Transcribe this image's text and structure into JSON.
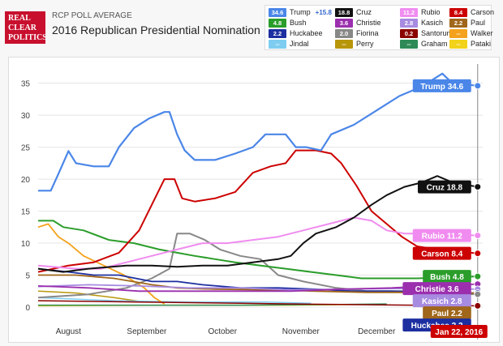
{
  "header": {
    "logo": [
      "REAL",
      "CLEAR",
      "POLITICS"
    ],
    "label": "RCP POLL AVERAGE",
    "title": "2016 Republican Presidential Nomination"
  },
  "legend": [
    {
      "name": "Trump",
      "value": "34.6",
      "color": "#4a86e8",
      "extra": "+15.8"
    },
    {
      "name": "Cruz",
      "value": "18.8",
      "color": "#111111"
    },
    {
      "name": "Rubio",
      "value": "11.2",
      "color": "#f08cf0"
    },
    {
      "name": "Carson",
      "value": "8.4",
      "color": "#cc0000"
    },
    {
      "name": "Bush",
      "value": "4.8",
      "color": "#2a9d2a"
    },
    {
      "name": "Christie",
      "value": "3.6",
      "color": "#9b2fae"
    },
    {
      "name": "Kasich",
      "value": "2.8",
      "color": "#a78be0"
    },
    {
      "name": "Paul",
      "value": "2.2",
      "color": "#a0661a"
    },
    {
      "name": "Huckabee",
      "value": "2.2",
      "color": "#1c2ea0"
    },
    {
      "name": "Fiorina",
      "value": "2.0",
      "color": "#888888"
    },
    {
      "name": "Santorum",
      "value": "0.2",
      "color": "#8b0000"
    },
    {
      "name": "Walker",
      "value": "--",
      "color": "#f4a21d"
    },
    {
      "name": "Jindal",
      "value": "--",
      "color": "#7ecdf0"
    },
    {
      "name": "Perry",
      "value": "--",
      "color": "#b8960a"
    },
    {
      "name": "Graham",
      "value": "--",
      "color": "#2e8b57"
    },
    {
      "name": "Pataki",
      "value": "--",
      "color": "#f2d21a"
    }
  ],
  "chart_data": {
    "type": "line",
    "ylim": [
      0,
      38
    ],
    "yticks": [
      0,
      5,
      10,
      15,
      20,
      25,
      30,
      35
    ],
    "xlim": [
      0,
      176
    ],
    "month_labels": [
      {
        "label": "August",
        "x": 12
      },
      {
        "label": "September",
        "x": 43
      },
      {
        "label": "October",
        "x": 73
      },
      {
        "label": "November",
        "x": 104
      },
      {
        "label": "December",
        "x": 134
      },
      {
        "label": "2016",
        "x": 165
      }
    ],
    "current_date": "Jan 22, 2016",
    "current_x": 174,
    "series": [
      {
        "name": "Trump",
        "color": "#4a86e8",
        "width": 2.2,
        "points": [
          [
            0,
            18.2
          ],
          [
            5,
            18.2
          ],
          [
            8,
            20.8
          ],
          [
            12,
            24.4
          ],
          [
            15,
            22.5
          ],
          [
            22,
            22
          ],
          [
            28,
            22
          ],
          [
            32,
            25
          ],
          [
            38,
            28
          ],
          [
            44,
            29.5
          ],
          [
            50,
            30.5
          ],
          [
            52,
            30.5
          ],
          [
            55,
            27
          ],
          [
            58,
            24.5
          ],
          [
            62,
            23
          ],
          [
            70,
            23
          ],
          [
            78,
            24
          ],
          [
            85,
            25
          ],
          [
            90,
            27
          ],
          [
            98,
            27
          ],
          [
            102,
            25
          ],
          [
            106,
            25
          ],
          [
            112,
            24.5
          ],
          [
            116,
            27
          ],
          [
            125,
            28.5
          ],
          [
            135,
            31
          ],
          [
            143,
            33
          ],
          [
            152,
            34.5
          ],
          [
            160,
            36.5
          ],
          [
            164,
            35
          ],
          [
            174,
            34.6
          ]
        ],
        "label": "Trump 34.6",
        "label_y": 34.6
      },
      {
        "name": "Cruz",
        "color": "#111111",
        "width": 2,
        "points": [
          [
            0,
            6
          ],
          [
            10,
            5.5
          ],
          [
            20,
            6
          ],
          [
            35,
            6.5
          ],
          [
            45,
            6.5
          ],
          [
            55,
            6.3
          ],
          [
            65,
            6.5
          ],
          [
            75,
            6.5
          ],
          [
            85,
            7
          ],
          [
            95,
            7.5
          ],
          [
            100,
            8
          ],
          [
            105,
            10
          ],
          [
            110,
            11.5
          ],
          [
            118,
            12.5
          ],
          [
            125,
            14
          ],
          [
            132,
            16
          ],
          [
            138,
            17.5
          ],
          [
            145,
            18.8
          ],
          [
            152,
            19.5
          ],
          [
            158,
            20.5
          ],
          [
            164,
            19.5
          ],
          [
            174,
            18.8
          ]
        ],
        "label": "Cruz 18.8",
        "label_y": 18.8
      },
      {
        "name": "Rubio",
        "color": "#f08cf0",
        "width": 2,
        "points": [
          [
            0,
            6.5
          ],
          [
            15,
            6
          ],
          [
            25,
            6
          ],
          [
            35,
            7
          ],
          [
            45,
            8
          ],
          [
            55,
            9
          ],
          [
            65,
            10
          ],
          [
            75,
            10
          ],
          [
            85,
            10.5
          ],
          [
            95,
            11
          ],
          [
            105,
            12
          ],
          [
            115,
            13
          ],
          [
            125,
            14
          ],
          [
            132,
            13.5
          ],
          [
            138,
            12
          ],
          [
            145,
            11.5
          ],
          [
            155,
            11.5
          ],
          [
            174,
            11.2
          ]
        ],
        "label": "Rubio 11.2",
        "label_y": 11.2
      },
      {
        "name": "Carson",
        "color": "#cc0000",
        "width": 2,
        "points": [
          [
            0,
            5.5
          ],
          [
            12,
            6.5
          ],
          [
            22,
            7
          ],
          [
            32,
            8.5
          ],
          [
            40,
            12
          ],
          [
            45,
            16
          ],
          [
            50,
            20
          ],
          [
            54,
            20
          ],
          [
            57,
            17
          ],
          [
            62,
            16.5
          ],
          [
            70,
            17
          ],
          [
            78,
            18
          ],
          [
            85,
            21
          ],
          [
            92,
            22
          ],
          [
            98,
            22.5
          ],
          [
            102,
            24.5
          ],
          [
            110,
            24.5
          ],
          [
            116,
            24
          ],
          [
            120,
            22.5
          ],
          [
            126,
            19
          ],
          [
            132,
            15
          ],
          [
            138,
            13
          ],
          [
            144,
            11
          ],
          [
            150,
            9.5
          ],
          [
            158,
            9
          ],
          [
            174,
            8.4
          ]
        ],
        "label": "Carson 8.4",
        "label_y": 8.4
      },
      {
        "name": "Bush",
        "color": "#2a9d2a",
        "width": 2,
        "points": [
          [
            0,
            13.5
          ],
          [
            6,
            13.5
          ],
          [
            10,
            12.5
          ],
          [
            18,
            12
          ],
          [
            28,
            10.5
          ],
          [
            38,
            10
          ],
          [
            48,
            9
          ],
          [
            55,
            8.5
          ],
          [
            62,
            8
          ],
          [
            70,
            7.5
          ],
          [
            78,
            7
          ],
          [
            88,
            6.5
          ],
          [
            98,
            6
          ],
          [
            108,
            5.5
          ],
          [
            118,
            5
          ],
          [
            128,
            4.5
          ],
          [
            140,
            4.5
          ],
          [
            150,
            4.5
          ],
          [
            174,
            4.8
          ]
        ],
        "label": "Bush 4.8",
        "label_y": 4.8
      },
      {
        "name": "Christie",
        "color": "#9b2fae",
        "width": 1.8,
        "points": [
          [
            0,
            3.3
          ],
          [
            20,
            3
          ],
          [
            40,
            2.5
          ],
          [
            60,
            2.5
          ],
          [
            80,
            2.5
          ],
          [
            100,
            2.5
          ],
          [
            120,
            2.8
          ],
          [
            140,
            3
          ],
          [
            155,
            3.3
          ],
          [
            174,
            3.6
          ]
        ],
        "label": "Christie 3.6",
        "label_y": 3.6
      },
      {
        "name": "Kasich",
        "color": "#a78be0",
        "width": 1.8,
        "points": [
          [
            0,
            3.2
          ],
          [
            20,
            3.5
          ],
          [
            40,
            3.3
          ],
          [
            60,
            3
          ],
          [
            80,
            3
          ],
          [
            100,
            2.7
          ],
          [
            120,
            2.8
          ],
          [
            140,
            2.9
          ],
          [
            174,
            2.8
          ]
        ],
        "label": "Kasich 2.8",
        "label_y": 2.8
      },
      {
        "name": "Paul",
        "color": "#a0661a",
        "width": 1.8,
        "points": [
          [
            0,
            5
          ],
          [
            15,
            5
          ],
          [
            30,
            4.5
          ],
          [
            45,
            3.5
          ],
          [
            55,
            3
          ],
          [
            70,
            2.8
          ],
          [
            90,
            2.7
          ],
          [
            110,
            2.5
          ],
          [
            130,
            2.3
          ],
          [
            150,
            2.3
          ],
          [
            174,
            2.2
          ]
        ],
        "label": "Paul 2.2",
        "label_y": 2.2
      },
      {
        "name": "Huckabee",
        "color": "#1c2ea0",
        "width": 1.8,
        "points": [
          [
            0,
            6
          ],
          [
            12,
            5.5
          ],
          [
            22,
            5
          ],
          [
            32,
            5
          ],
          [
            45,
            4
          ],
          [
            55,
            4
          ],
          [
            65,
            3.5
          ],
          [
            80,
            3
          ],
          [
            95,
            3
          ],
          [
            110,
            2.8
          ],
          [
            125,
            2.5
          ],
          [
            140,
            2.5
          ],
          [
            155,
            2.3
          ],
          [
            174,
            2.2
          ]
        ],
        "label": "Huckabee 2.2",
        "label_y": 2.2
      },
      {
        "name": "Fiorina",
        "color": "#888888",
        "width": 2,
        "points": [
          [
            0,
            1.5
          ],
          [
            20,
            2
          ],
          [
            35,
            3
          ],
          [
            45,
            4.5
          ],
          [
            52,
            6
          ],
          [
            55,
            11.5
          ],
          [
            60,
            11.5
          ],
          [
            66,
            10.5
          ],
          [
            72,
            9
          ],
          [
            80,
            8
          ],
          [
            88,
            7.5
          ],
          [
            95,
            5
          ],
          [
            105,
            4
          ],
          [
            118,
            3
          ],
          [
            130,
            2.5
          ],
          [
            145,
            2.5
          ],
          [
            160,
            2.1
          ],
          [
            174,
            2
          ]
        ]
      },
      {
        "name": "Santorum",
        "color": "#8b0000",
        "width": 1.5,
        "points": [
          [
            0,
            1
          ],
          [
            40,
            0.8
          ],
          [
            80,
            0.6
          ],
          [
            120,
            0.4
          ],
          [
            174,
            0.2
          ]
        ]
      },
      {
        "name": "Walker",
        "color": "#f4a21d",
        "width": 1.8,
        "points": [
          [
            0,
            12.5
          ],
          [
            4,
            13
          ],
          [
            8,
            11
          ],
          [
            12,
            10
          ],
          [
            18,
            8
          ],
          [
            26,
            6.5
          ],
          [
            34,
            5
          ],
          [
            42,
            3
          ],
          [
            46,
            1.5
          ],
          [
            50,
            0.5
          ]
        ]
      },
      {
        "name": "Jindal",
        "color": "#7ecdf0",
        "width": 1.5,
        "points": [
          [
            0,
            1.5
          ],
          [
            30,
            1
          ],
          [
            60,
            0.8
          ],
          [
            90,
            0.8
          ],
          [
            108,
            0.6
          ]
        ]
      },
      {
        "name": "Perry",
        "color": "#b8960a",
        "width": 1.5,
        "points": [
          [
            0,
            2.5
          ],
          [
            15,
            2.2
          ],
          [
            30,
            1.5
          ],
          [
            42,
            0.8
          ]
        ]
      },
      {
        "name": "Graham",
        "color": "#2e8b57",
        "width": 1.5,
        "points": [
          [
            0,
            0.3
          ],
          [
            40,
            0.3
          ],
          [
            80,
            0.3
          ],
          [
            120,
            0.4
          ],
          [
            138,
            0.5
          ]
        ]
      },
      {
        "name": "Pataki",
        "color": "#f2d21a",
        "width": 1.5,
        "points": [
          [
            0,
            0.2
          ],
          [
            50,
            0.3
          ],
          [
            100,
            0.3
          ],
          [
            130,
            0.4
          ]
        ]
      }
    ]
  }
}
